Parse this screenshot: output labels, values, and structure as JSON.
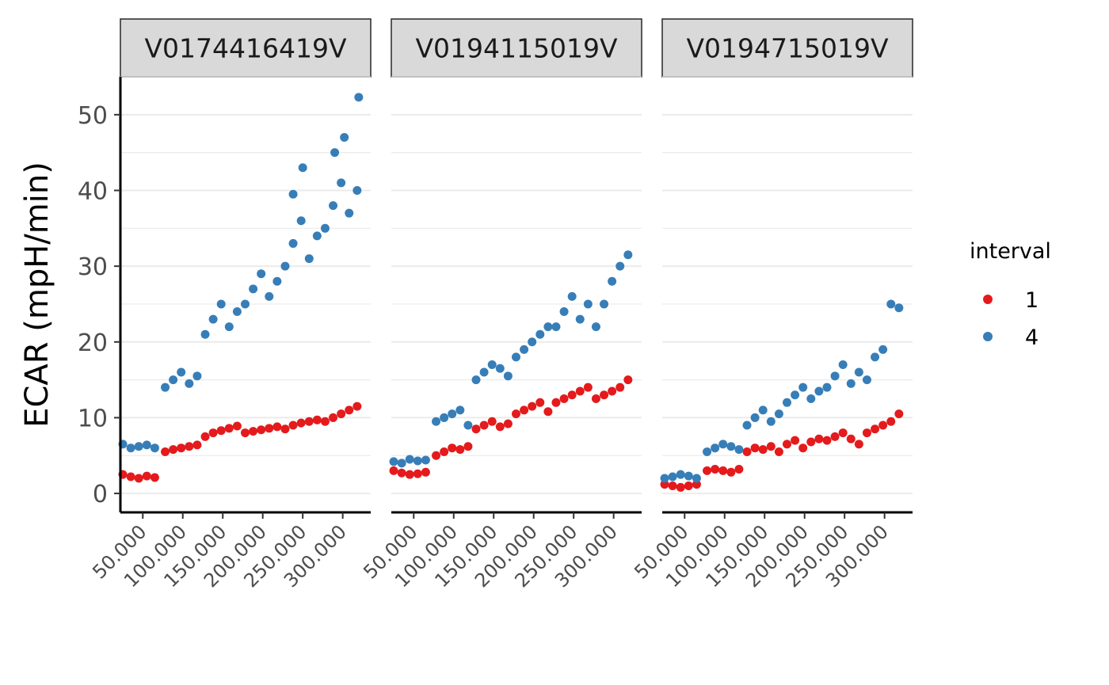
{
  "chart_data": {
    "type": "scatter",
    "title": "",
    "ylabel": "ECAR (mpH/min)",
    "xlabel": "",
    "ylim": [
      -2.5,
      55
    ],
    "xlim": [
      22000,
      335000
    ],
    "y_ticks": [
      0,
      10,
      20,
      30,
      40,
      50
    ],
    "x_ticks": [
      50000,
      100000,
      150000,
      200000,
      250000,
      300000
    ],
    "x_tick_labels": [
      "50.000",
      "100.000",
      "150.000",
      "200.000",
      "250.000",
      "300.000"
    ],
    "grid": "horizontal major and minor lines",
    "legend": {
      "title": "interval",
      "position": "right",
      "labels": [
        "1",
        "4"
      ]
    },
    "colors": {
      "1": "#e41a1c",
      "4": "#377eb8"
    },
    "panels": [
      {
        "name": "V0174416419V",
        "series": [
          {
            "name": "1",
            "points": [
              [
                25000,
                2.5
              ],
              [
                35000,
                2.2
              ],
              [
                45000,
                2.0
              ],
              [
                55000,
                2.3
              ],
              [
                65000,
                2.1
              ],
              [
                78000,
                5.5
              ],
              [
                88000,
                5.8
              ],
              [
                98000,
                6.0
              ],
              [
                108000,
                6.2
              ],
              [
                118000,
                6.4
              ],
              [
                128000,
                7.5
              ],
              [
                138000,
                8.0
              ],
              [
                148000,
                8.3
              ],
              [
                158000,
                8.6
              ],
              [
                168000,
                8.9
              ],
              [
                178000,
                8.0
              ],
              [
                188000,
                8.2
              ],
              [
                198000,
                8.4
              ],
              [
                208000,
                8.6
              ],
              [
                218000,
                8.8
              ],
              [
                228000,
                8.5
              ],
              [
                238000,
                9.0
              ],
              [
                248000,
                9.3
              ],
              [
                258000,
                9.5
              ],
              [
                268000,
                9.7
              ],
              [
                278000,
                9.5
              ],
              [
                288000,
                10.0
              ],
              [
                298000,
                10.5
              ],
              [
                308000,
                11.0
              ],
              [
                318000,
                11.5
              ]
            ]
          },
          {
            "name": "4",
            "points": [
              [
                25000,
                6.5
              ],
              [
                35000,
                6.0
              ],
              [
                45000,
                6.2
              ],
              [
                55000,
                6.4
              ],
              [
                65000,
                6.0
              ],
              [
                78000,
                14.0
              ],
              [
                88000,
                15.0
              ],
              [
                98000,
                16.0
              ],
              [
                108000,
                14.5
              ],
              [
                118000,
                15.5
              ],
              [
                128000,
                21.0
              ],
              [
                138000,
                23.0
              ],
              [
                148000,
                25.0
              ],
              [
                158000,
                22.0
              ],
              [
                168000,
                24.0
              ],
              [
                178000,
                25.0
              ],
              [
                188000,
                27.0
              ],
              [
                198000,
                29.0
              ],
              [
                208000,
                26.0
              ],
              [
                218000,
                28.0
              ],
              [
                228000,
                30.0
              ],
              [
                238000,
                33.0
              ],
              [
                248000,
                36.0
              ],
              [
                258000,
                31.0
              ],
              [
                268000,
                34.0
              ],
              [
                278000,
                35.0
              ],
              [
                288000,
                38.0
              ],
              [
                298000,
                41.0
              ],
              [
                308000,
                37.0
              ],
              [
                318000,
                40.0
              ],
              [
                320000,
                52.3
              ],
              [
                302000,
                47.0
              ],
              [
                290000,
                45.0
              ],
              [
                238000,
                39.5
              ],
              [
                250000,
                43.0
              ]
            ]
          }
        ]
      },
      {
        "name": "V0194115019V",
        "series": [
          {
            "name": "1",
            "points": [
              [
                25000,
                3.0
              ],
              [
                35000,
                2.7
              ],
              [
                45000,
                2.5
              ],
              [
                55000,
                2.6
              ],
              [
                65000,
                2.8
              ],
              [
                78000,
                5.0
              ],
              [
                88000,
                5.5
              ],
              [
                98000,
                6.0
              ],
              [
                108000,
                5.8
              ],
              [
                118000,
                6.2
              ],
              [
                128000,
                8.5
              ],
              [
                138000,
                9.0
              ],
              [
                148000,
                9.5
              ],
              [
                158000,
                8.8
              ],
              [
                168000,
                9.2
              ],
              [
                178000,
                10.5
              ],
              [
                188000,
                11.0
              ],
              [
                198000,
                11.5
              ],
              [
                208000,
                12.0
              ],
              [
                218000,
                10.8
              ],
              [
                228000,
                12.0
              ],
              [
                238000,
                12.5
              ],
              [
                248000,
                13.0
              ],
              [
                258000,
                13.5
              ],
              [
                268000,
                14.0
              ],
              [
                278000,
                12.5
              ],
              [
                288000,
                13.0
              ],
              [
                298000,
                13.5
              ],
              [
                308000,
                14.0
              ],
              [
                318000,
                15.0
              ]
            ]
          },
          {
            "name": "4",
            "points": [
              [
                25000,
                4.2
              ],
              [
                35000,
                4.0
              ],
              [
                45000,
                4.5
              ],
              [
                55000,
                4.3
              ],
              [
                65000,
                4.4
              ],
              [
                78000,
                9.5
              ],
              [
                88000,
                10.0
              ],
              [
                98000,
                10.5
              ],
              [
                108000,
                11.0
              ],
              [
                118000,
                9.0
              ],
              [
                128000,
                15.0
              ],
              [
                138000,
                16.0
              ],
              [
                148000,
                17.0
              ],
              [
                158000,
                16.5
              ],
              [
                168000,
                15.5
              ],
              [
                178000,
                18.0
              ],
              [
                188000,
                19.0
              ],
              [
                198000,
                20.0
              ],
              [
                208000,
                21.0
              ],
              [
                218000,
                22.0
              ],
              [
                228000,
                22.0
              ],
              [
                238000,
                24.0
              ],
              [
                248000,
                26.0
              ],
              [
                258000,
                23.0
              ],
              [
                268000,
                25.0
              ],
              [
                278000,
                22.0
              ],
              [
                288000,
                25.0
              ],
              [
                298000,
                28.0
              ],
              [
                308000,
                30.0
              ],
              [
                318000,
                31.5
              ]
            ]
          }
        ]
      },
      {
        "name": "V0194715019V",
        "series": [
          {
            "name": "1",
            "points": [
              [
                25000,
                1.2
              ],
              [
                35000,
                1.0
              ],
              [
                45000,
                0.8
              ],
              [
                55000,
                1.0
              ],
              [
                65000,
                1.2
              ],
              [
                78000,
                3.0
              ],
              [
                88000,
                3.2
              ],
              [
                98000,
                3.0
              ],
              [
                108000,
                2.8
              ],
              [
                118000,
                3.2
              ],
              [
                128000,
                5.5
              ],
              [
                138000,
                6.0
              ],
              [
                148000,
                5.8
              ],
              [
                158000,
                6.2
              ],
              [
                168000,
                5.5
              ],
              [
                178000,
                6.5
              ],
              [
                188000,
                7.0
              ],
              [
                198000,
                6.0
              ],
              [
                208000,
                6.8
              ],
              [
                218000,
                7.2
              ],
              [
                228000,
                7.0
              ],
              [
                238000,
                7.5
              ],
              [
                248000,
                8.0
              ],
              [
                258000,
                7.2
              ],
              [
                268000,
                6.5
              ],
              [
                278000,
                8.0
              ],
              [
                288000,
                8.5
              ],
              [
                298000,
                9.0
              ],
              [
                308000,
                9.5
              ],
              [
                318000,
                10.5
              ]
            ]
          },
          {
            "name": "4",
            "points": [
              [
                25000,
                2.0
              ],
              [
                35000,
                2.2
              ],
              [
                45000,
                2.5
              ],
              [
                55000,
                2.3
              ],
              [
                65000,
                2.0
              ],
              [
                78000,
                5.5
              ],
              [
                88000,
                6.0
              ],
              [
                98000,
                6.5
              ],
              [
                108000,
                6.2
              ],
              [
                118000,
                5.8
              ],
              [
                128000,
                9.0
              ],
              [
                138000,
                10.0
              ],
              [
                148000,
                11.0
              ],
              [
                158000,
                9.5
              ],
              [
                168000,
                10.5
              ],
              [
                178000,
                12.0
              ],
              [
                188000,
                13.0
              ],
              [
                198000,
                14.0
              ],
              [
                208000,
                12.5
              ],
              [
                218000,
                13.5
              ],
              [
                228000,
                14.0
              ],
              [
                238000,
                15.5
              ],
              [
                248000,
                17.0
              ],
              [
                258000,
                14.5
              ],
              [
                268000,
                16.0
              ],
              [
                278000,
                15.0
              ],
              [
                288000,
                18.0
              ],
              [
                298000,
                19.0
              ],
              [
                308000,
                25.0
              ],
              [
                318000,
                24.5
              ]
            ]
          }
        ]
      }
    ]
  }
}
